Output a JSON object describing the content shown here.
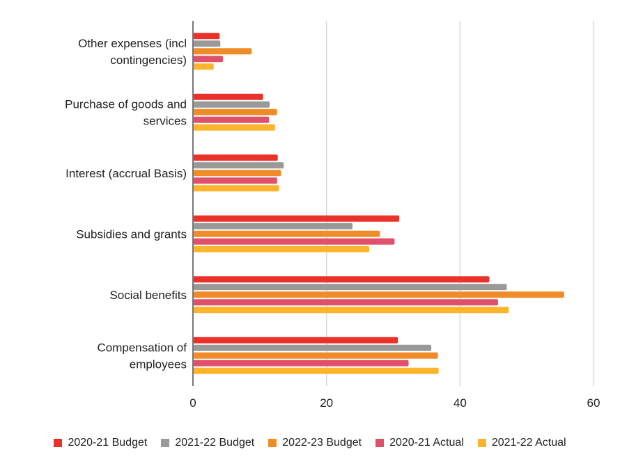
{
  "chart_data": {
    "type": "bar",
    "orientation": "horizontal",
    "title": "",
    "xlabel": "",
    "ylabel": "",
    "xlim": [
      0,
      60
    ],
    "xticks": [
      0,
      20,
      40,
      60
    ],
    "grid": true,
    "legend_position": "bottom",
    "categories": [
      [
        "Other expenses (incl",
        "contingencies)"
      ],
      [
        "Purchase of goods and",
        "services"
      ],
      [
        "Interest (accrual Basis)"
      ],
      [
        "Subsidies and grants"
      ],
      [
        "Social benefits"
      ],
      [
        "Compensation of",
        "employees"
      ]
    ],
    "series": [
      {
        "name": "2020-21 Budget",
        "color": "#e8322a",
        "values": [
          4.0,
          10.5,
          12.7,
          30.9,
          44.4,
          30.7
        ]
      },
      {
        "name": "2021-22 Budget",
        "color": "#999999",
        "values": [
          4.1,
          11.5,
          13.6,
          23.9,
          47.0,
          35.7
        ]
      },
      {
        "name": "2022-23 Budget",
        "color": "#f08c28",
        "values": [
          8.8,
          12.6,
          13.2,
          28.0,
          55.6,
          36.7
        ]
      },
      {
        "name": "2020-21 Actual",
        "color": "#e0506a",
        "values": [
          4.5,
          11.4,
          12.6,
          30.2,
          45.7,
          32.3
        ]
      },
      {
        "name": "2021-22 Actual",
        "color": "#fbb42c",
        "values": [
          3.1,
          12.3,
          12.9,
          26.4,
          47.3,
          36.8
        ]
      }
    ]
  }
}
